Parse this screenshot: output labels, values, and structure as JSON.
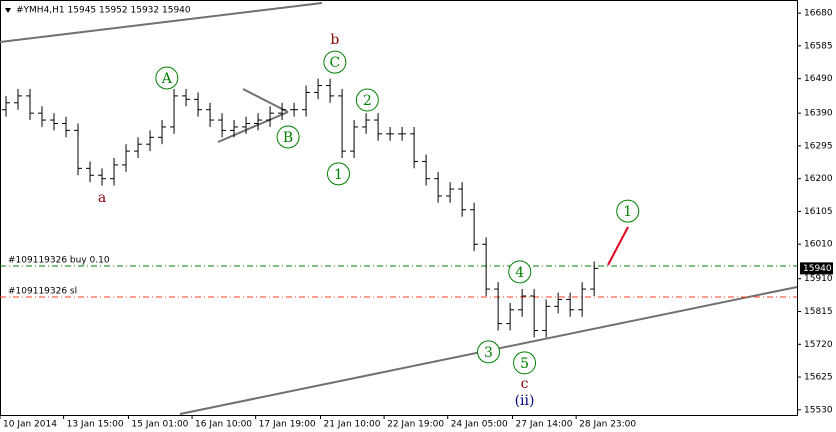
{
  "chart_data": {
    "type": "ohlc",
    "title": "#YMH4,H1  15945 15952 15932 15940",
    "color": "#000000",
    "ylim": [
      15515,
      16718
    ],
    "yticks": [
      15530,
      15625,
      15720,
      15815,
      15910,
      16010,
      16105,
      16200,
      16295,
      16390,
      16490,
      16585,
      16680
    ],
    "xlim": [
      -0.5,
      65.9
    ],
    "xticks": [
      {
        "value": -0.5,
        "label": "10 Jan 2014"
      },
      {
        "value": 4.8,
        "label": "13 Jan 15:00"
      },
      {
        "value": 10.2,
        "label": "15 Jan 01:00"
      },
      {
        "value": 15.5,
        "label": "16 Jan 10:00"
      },
      {
        "value": 20.8,
        "label": "17 Jan 19:00"
      },
      {
        "value": 26.2,
        "label": "21 Jan 10:00"
      },
      {
        "value": 31.5,
        "label": "22 Jan 19:00"
      },
      {
        "value": 36.8,
        "label": "24 Jan 05:00"
      },
      {
        "value": 42.2,
        "label": "27 Jan 14:00"
      },
      {
        "value": 47.5,
        "label": "28 Jan 23:00"
      }
    ],
    "open": [
      16400,
      16420,
      16440,
      16390,
      16370,
      16360,
      16340,
      16230,
      16210,
      16200,
      16240,
      16280,
      16300,
      16320,
      16350,
      16440,
      16430,
      16400,
      16370,
      16340,
      16350,
      16360,
      16370,
      16390,
      16400,
      16400,
      16450,
      16470,
      16440,
      16280,
      16350,
      16370,
      16330,
      16330,
      16330,
      16250,
      16200,
      16150,
      16170,
      16110,
      16010,
      15880,
      15780,
      15820,
      15860,
      15760,
      15830,
      15850,
      15820,
      15880
    ],
    "high": [
      16440,
      16460,
      16460,
      16410,
      16390,
      16380,
      16360,
      16250,
      16230,
      16260,
      16300,
      16320,
      16340,
      16370,
      16460,
      16460,
      16450,
      16420,
      16390,
      16370,
      16380,
      16390,
      16410,
      16420,
      16420,
      16470,
      16490,
      16490,
      16460,
      16370,
      16390,
      16390,
      16350,
      16350,
      16350,
      16270,
      16220,
      16190,
      16190,
      16130,
      16030,
      15900,
      15840,
      15880,
      15880,
      15850,
      15870,
      15870,
      15900,
      15960
    ],
    "low": [
      16380,
      16400,
      16370,
      16350,
      16340,
      16320,
      16210,
      16190,
      16180,
      16180,
      16220,
      16260,
      16280,
      16300,
      16330,
      16410,
      16380,
      16350,
      16320,
      16320,
      16330,
      16340,
      16350,
      16370,
      16380,
      16380,
      16430,
      16420,
      16260,
      16260,
      16330,
      16310,
      16310,
      16310,
      16230,
      16180,
      16130,
      16130,
      16090,
      15990,
      15860,
      15760,
      15760,
      15800,
      15740,
      15740,
      15810,
      15800,
      15800,
      15860
    ],
    "close": [
      16420,
      16440,
      16390,
      16370,
      16360,
      16340,
      16230,
      16210,
      16200,
      16240,
      16280,
      16300,
      16320,
      16350,
      16440,
      16430,
      16400,
      16370,
      16340,
      16350,
      16360,
      16370,
      16390,
      16400,
      16400,
      16450,
      16470,
      16440,
      16280,
      16350,
      16370,
      16330,
      16330,
      16330,
      16250,
      16200,
      16150,
      16170,
      16110,
      16010,
      15880,
      15780,
      15820,
      15860,
      15760,
      15830,
      15850,
      15820,
      15880,
      15940
    ],
    "last_price": 15940,
    "levels": [
      {
        "label": "#109119326 buy 0.10",
        "value": 15947,
        "color": "#008000"
      },
      {
        "label": "#109119326 sl",
        "value": 15857,
        "color": "#ff4020"
      }
    ],
    "annotations": [
      {
        "label": "a",
        "x": 8,
        "y": 16147,
        "color": "#8b0000",
        "circled": false
      },
      {
        "label": "A",
        "x": 13.4,
        "y": 16492,
        "color": "#008000",
        "circled": true
      },
      {
        "label": "B",
        "x": 23.5,
        "y": 16321,
        "color": "#008000",
        "circled": true
      },
      {
        "label": "C",
        "x": 27.4,
        "y": 16538,
        "color": "#008000",
        "circled": true
      },
      {
        "label": "b",
        "x": 27.4,
        "y": 16605,
        "color": "#8b0000",
        "circled": false
      },
      {
        "label": "1",
        "x": 27.7,
        "y": 16214,
        "color": "#008000",
        "circled": true
      },
      {
        "label": "2",
        "x": 30.1,
        "y": 16428,
        "color": "#008000",
        "circled": true
      },
      {
        "label": "3",
        "x": 40.2,
        "y": 15698,
        "color": "#008000",
        "circled": true
      },
      {
        "label": "4",
        "x": 42.8,
        "y": 15930,
        "color": "#008000",
        "circled": true
      },
      {
        "label": "5",
        "x": 43.2,
        "y": 15666,
        "color": "#008000",
        "circled": true
      },
      {
        "label": "c",
        "x": 43.2,
        "y": 15608,
        "color": "#8b0000",
        "circled": false
      },
      {
        "label": "(ii)",
        "x": 43.2,
        "y": 15559,
        "color": "#000080",
        "circled": false
      },
      {
        "label": "1",
        "x": 51.8,
        "y": 16106,
        "color": "#008000",
        "circled": true
      }
    ]
  }
}
